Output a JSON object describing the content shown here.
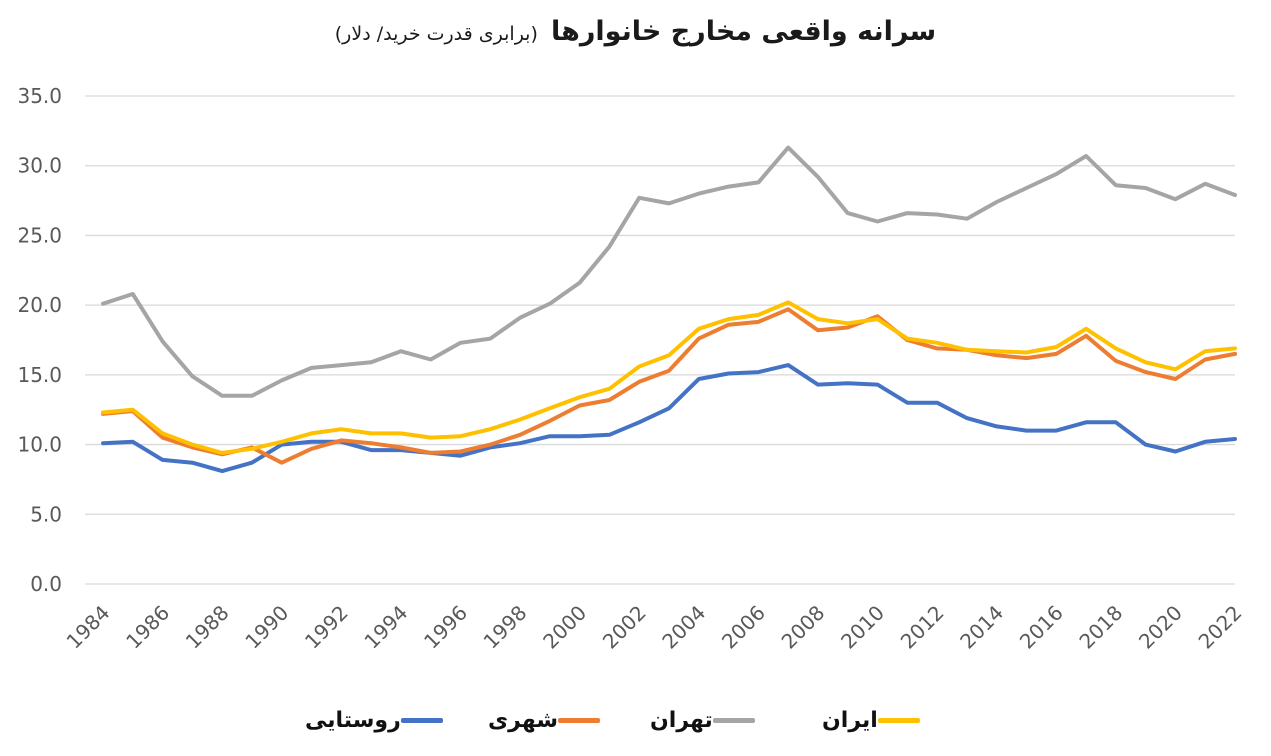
{
  "chart_data": {
    "type": "line",
    "title": "سرانه واقعی مخارج خانوارها",
    "subtitle": "(برابری قدرت خرید/ دلار)",
    "xlabel": "",
    "ylabel": "",
    "ylim": [
      0,
      35
    ],
    "y_ticks": [
      "0.0",
      "5.0",
      "10.0",
      "15.0",
      "20.0",
      "25.0",
      "30.0",
      "35.0"
    ],
    "x_tick_labels": [
      "1984",
      "1986",
      "1988",
      "1990",
      "1992",
      "1994",
      "1996",
      "1998",
      "2000",
      "2002",
      "2004",
      "2006",
      "2008",
      "2010",
      "2012",
      "2014",
      "2016",
      "2018",
      "2020",
      "2022"
    ],
    "x": [
      1984,
      1985,
      1986,
      1987,
      1988,
      1989,
      1990,
      1991,
      1992,
      1993,
      1994,
      1995,
      1996,
      1997,
      1998,
      1999,
      2000,
      2001,
      2002,
      2003,
      2004,
      2005,
      2006,
      2007,
      2008,
      2009,
      2010,
      2011,
      2012,
      2013,
      2014,
      2015,
      2016,
      2017,
      2018,
      2019,
      2020,
      2021,
      2022
    ],
    "grid": true,
    "legend_position": "bottom",
    "series": [
      {
        "name": "روستایی",
        "color": "#4472c4",
        "values": [
          10.1,
          10.2,
          8.9,
          8.7,
          8.1,
          8.7,
          10.0,
          10.2,
          10.2,
          9.6,
          9.6,
          9.4,
          9.2,
          9.8,
          10.1,
          10.6,
          10.6,
          10.7,
          11.6,
          12.6,
          14.7,
          15.1,
          15.2,
          15.7,
          14.3,
          14.4,
          14.3,
          13.0,
          13.0,
          11.9,
          11.3,
          11.0,
          11.0,
          11.6,
          11.6,
          10.0,
          9.5,
          10.2,
          10.4
        ]
      },
      {
        "name": "شهری",
        "color": "#ed7d31",
        "values": [
          12.2,
          12.4,
          10.5,
          9.8,
          9.3,
          9.8,
          8.7,
          9.7,
          10.3,
          10.1,
          9.8,
          9.4,
          9.5,
          10.0,
          10.7,
          11.7,
          12.8,
          13.2,
          14.5,
          15.3,
          17.6,
          18.6,
          18.8,
          19.7,
          18.2,
          18.4,
          19.2,
          17.5,
          16.9,
          16.8,
          16.4,
          16.2,
          16.5,
          17.8,
          16.0,
          15.2,
          14.7,
          16.1,
          16.5
        ]
      },
      {
        "name": "تهران",
        "color": "#a5a5a5",
        "values": [
          20.1,
          20.8,
          17.4,
          14.9,
          13.5,
          13.5,
          14.6,
          15.5,
          15.7,
          15.9,
          16.7,
          16.1,
          17.3,
          17.6,
          19.1,
          20.1,
          21.6,
          24.2,
          27.7,
          27.3,
          28.0,
          28.5,
          28.8,
          31.3,
          29.2,
          26.6,
          26.0,
          26.6,
          26.5,
          26.2,
          27.4,
          28.4,
          29.4,
          30.7,
          28.6,
          28.4,
          27.6,
          28.7,
          27.9
        ]
      },
      {
        "name": "ایران",
        "color": "#ffc000",
        "values": [
          12.3,
          12.5,
          10.8,
          10.0,
          9.4,
          9.7,
          10.2,
          10.8,
          11.1,
          10.8,
          10.8,
          10.5,
          10.6,
          11.1,
          11.8,
          12.6,
          13.4,
          14.0,
          15.6,
          16.4,
          18.3,
          19.0,
          19.3,
          20.2,
          19.0,
          18.7,
          19.0,
          17.6,
          17.3,
          16.8,
          16.7,
          16.6,
          17.0,
          18.3,
          16.9,
          15.9,
          15.4,
          16.7,
          16.9
        ]
      }
    ]
  }
}
